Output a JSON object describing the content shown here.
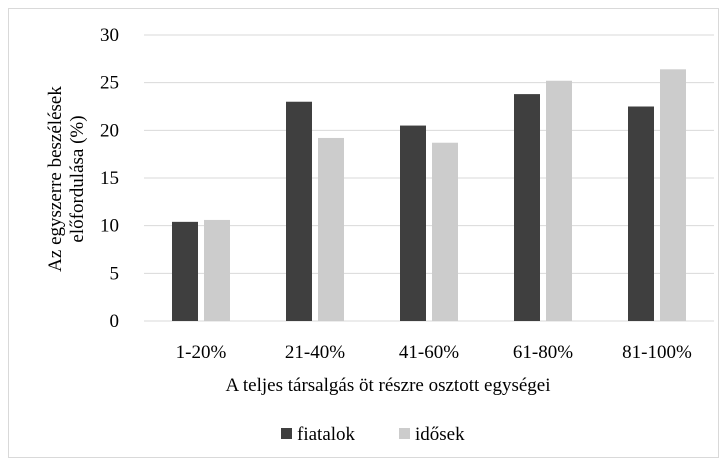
{
  "chart_data": {
    "type": "bar",
    "categories": [
      "1-20%",
      "21-40%",
      "41-60%",
      "61-80%",
      "81-100%"
    ],
    "series": [
      {
        "name": "fiatalok",
        "values": [
          10.4,
          23.0,
          20.5,
          23.8,
          22.5
        ],
        "color": "#3f3f3f"
      },
      {
        "name": "idősek",
        "values": [
          10.6,
          19.2,
          18.7,
          25.2,
          26.4
        ],
        "color": "#cccccc"
      }
    ],
    "title": "",
    "xlabel": "A teljes társalgás öt részre osztott egységei",
    "ylabel_lines": [
      "Az egyszerre beszélések",
      "előfordulása (%)"
    ],
    "ylim": [
      0,
      30
    ],
    "yticks": [
      "0",
      "5",
      "10",
      "15",
      "20",
      "25",
      "30"
    ],
    "grid": "horizontal",
    "legend": "bottom",
    "colors": {
      "gridline": "#d9d9d9",
      "frame": "#d9d9d9"
    }
  }
}
